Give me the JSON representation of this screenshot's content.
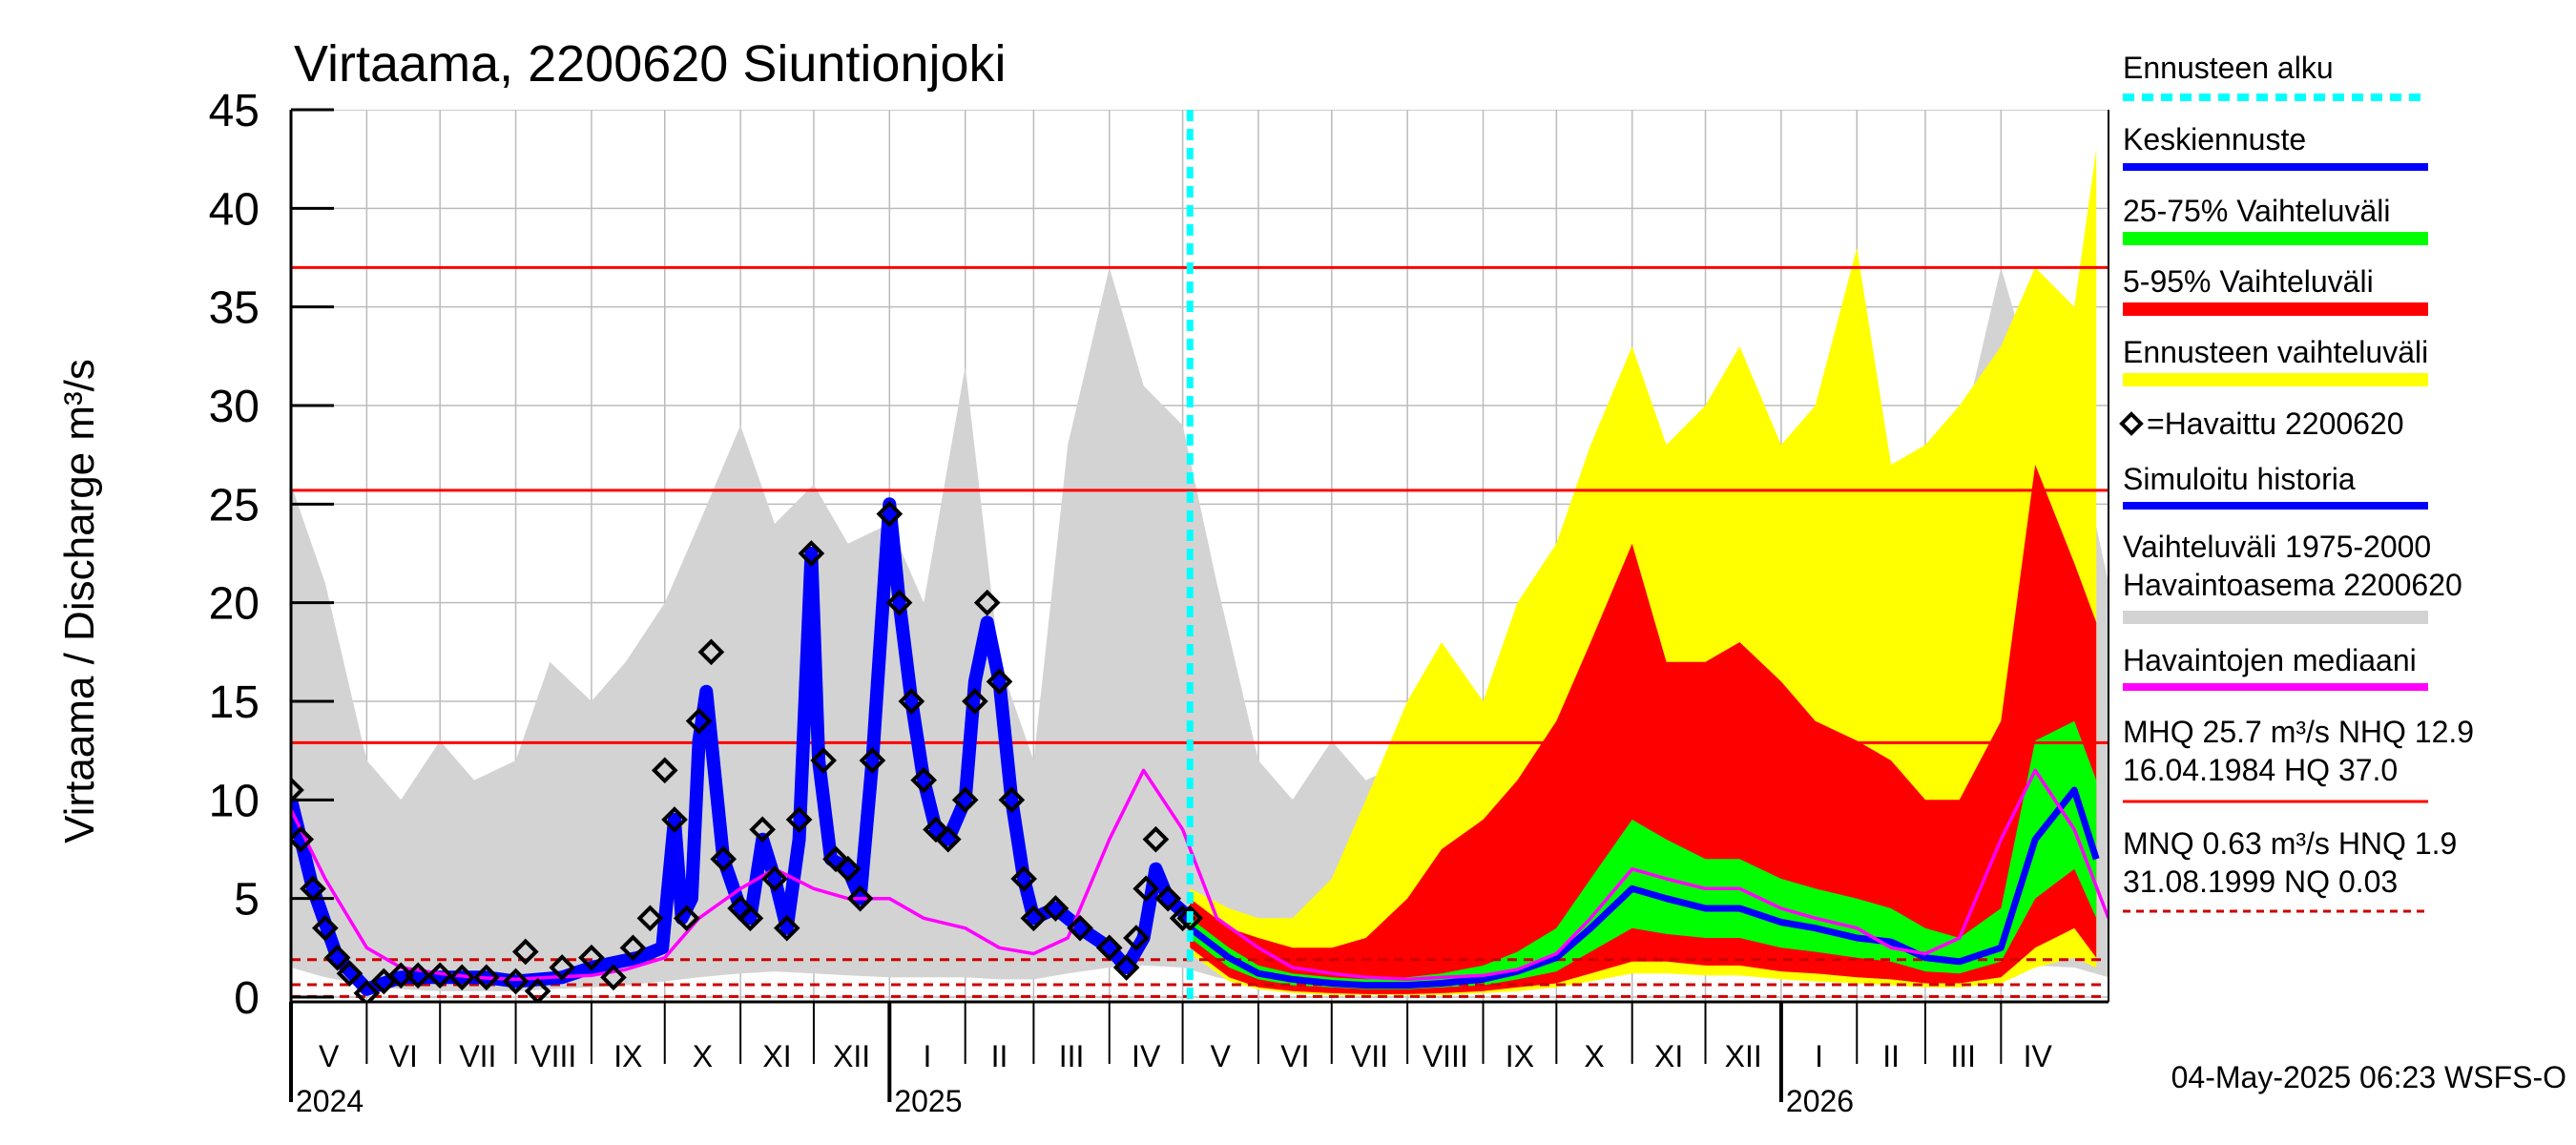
{
  "chart_data": {
    "type": "area",
    "title": "Virtaama, 2200620 Siuntionjoki",
    "ylabel": "Virtaama / Discharge    m³/s",
    "ylim": [
      0,
      45
    ],
    "yticks": [
      0,
      5,
      10,
      15,
      20,
      25,
      30,
      35,
      40,
      45
    ],
    "xlim": [
      "2024-05-01",
      "2026-05-15"
    ],
    "x_months": [
      {
        "label": "V",
        "start": "2024-05-01"
      },
      {
        "label": "VI",
        "start": "2024-06-01"
      },
      {
        "label": "VII",
        "start": "2024-07-01"
      },
      {
        "label": "VIII",
        "start": "2024-08-01"
      },
      {
        "label": "IX",
        "start": "2024-09-01"
      },
      {
        "label": "X",
        "start": "2024-10-01"
      },
      {
        "label": "XI",
        "start": "2024-11-01"
      },
      {
        "label": "XII",
        "start": "2024-12-01"
      },
      {
        "label": "I",
        "start": "2025-01-01"
      },
      {
        "label": "II",
        "start": "2025-02-01"
      },
      {
        "label": "III",
        "start": "2025-03-01"
      },
      {
        "label": "IV",
        "start": "2025-04-01"
      },
      {
        "label": "V",
        "start": "2025-05-01"
      },
      {
        "label": "VI",
        "start": "2025-06-01"
      },
      {
        "label": "VII",
        "start": "2025-07-01"
      },
      {
        "label": "VIII",
        "start": "2025-08-01"
      },
      {
        "label": "IX",
        "start": "2025-09-01"
      },
      {
        "label": "X",
        "start": "2025-10-01"
      },
      {
        "label": "XI",
        "start": "2025-11-01"
      },
      {
        "label": "XII",
        "start": "2025-12-01"
      },
      {
        "label": "I",
        "start": "2026-01-01"
      },
      {
        "label": "II",
        "start": "2026-02-01"
      },
      {
        "label": "III",
        "start": "2026-03-01"
      },
      {
        "label": "IV",
        "start": "2026-04-01"
      }
    ],
    "x_years": [
      {
        "label": "2024",
        "date": "2024-05-01"
      },
      {
        "label": "2025",
        "date": "2025-01-01"
      },
      {
        "label": "2026",
        "date": "2026-01-01"
      }
    ],
    "forecast_start": "2025-05-04",
    "reference_lines": [
      {
        "name": "HQ",
        "value": 37.0,
        "style": "solid",
        "color": "#ff0000"
      },
      {
        "name": "MHQ",
        "value": 25.7,
        "style": "solid",
        "color": "#ff0000"
      },
      {
        "name": "NHQ",
        "value": 12.9,
        "style": "solid",
        "color": "#ff0000"
      },
      {
        "name": "HNQ",
        "value": 1.9,
        "style": "dashed",
        "color": "#cc0000"
      },
      {
        "name": "MNQ",
        "value": 0.63,
        "style": "dashed",
        "color": "#cc0000"
      },
      {
        "name": "NQ",
        "value": 0.03,
        "style": "dashed",
        "color": "#cc0000"
      }
    ],
    "historical_range": {
      "x": [
        "2024-05-01",
        "2024-05-15",
        "2024-06-01",
        "2024-06-15",
        "2024-07-01",
        "2024-07-15",
        "2024-08-01",
        "2024-08-15",
        "2024-09-01",
        "2024-09-15",
        "2024-10-01",
        "2024-10-15",
        "2024-11-01",
        "2024-11-15",
        "2024-12-01",
        "2024-12-15",
        "2025-01-01",
        "2025-01-15",
        "2025-02-01",
        "2025-02-15",
        "2025-03-01",
        "2025-03-15",
        "2025-04-01",
        "2025-04-15",
        "2025-05-01",
        "2025-05-15",
        "2025-06-01",
        "2025-06-15",
        "2025-07-01",
        "2025-07-15",
        "2025-08-01",
        "2025-08-15",
        "2025-09-01",
        "2025-09-15",
        "2025-10-01",
        "2025-10-15",
        "2025-11-01",
        "2025-11-15",
        "2025-12-01",
        "2025-12-15",
        "2026-01-01",
        "2026-01-15",
        "2026-02-01",
        "2026-02-15",
        "2026-03-01",
        "2026-03-15",
        "2026-04-01",
        "2026-04-15",
        "2026-05-01",
        "2026-05-15"
      ],
      "low": [
        1.5,
        1.0,
        0.6,
        0.4,
        0.3,
        0.3,
        0.3,
        0.4,
        0.5,
        0.6,
        0.8,
        1.0,
        1.2,
        1.3,
        1.2,
        1.1,
        1.0,
        1.0,
        1.0,
        0.9,
        0.9,
        1.2,
        1.5,
        1.6,
        1.5,
        1.0,
        0.6,
        0.4,
        0.3,
        0.3,
        0.3,
        0.4,
        0.5,
        0.6,
        0.8,
        1.0,
        1.2,
        1.3,
        1.2,
        1.1,
        1.0,
        1.0,
        1.0,
        0.9,
        0.9,
        1.2,
        1.5,
        1.6,
        1.5,
        1.0
      ],
      "high": [
        26,
        21,
        12,
        10,
        13,
        11,
        12,
        17,
        15,
        17,
        20,
        24,
        29,
        24,
        26,
        23,
        24,
        20,
        32,
        17,
        12,
        28,
        37,
        31,
        29,
        21,
        12,
        10,
        13,
        11,
        12,
        17,
        15,
        17,
        20,
        24,
        29,
        24,
        26,
        23,
        24,
        20,
        32,
        17,
        12,
        28,
        37,
        31,
        29,
        21
      ]
    },
    "observation_median": {
      "x": [
        "2024-05-01",
        "2024-05-15",
        "2024-06-01",
        "2024-06-15",
        "2024-07-01",
        "2024-07-15",
        "2024-08-01",
        "2024-08-15",
        "2024-09-01",
        "2024-09-15",
        "2024-10-01",
        "2024-10-15",
        "2024-11-01",
        "2024-11-15",
        "2024-12-01",
        "2024-12-15",
        "2025-01-01",
        "2025-01-15",
        "2025-02-01",
        "2025-02-15",
        "2025-03-01",
        "2025-03-15",
        "2025-04-01",
        "2025-04-15",
        "2025-05-01",
        "2025-05-15",
        "2025-06-01",
        "2025-06-15",
        "2025-07-01",
        "2025-07-15",
        "2025-08-01",
        "2025-08-15",
        "2025-09-01",
        "2025-09-15",
        "2025-10-01",
        "2025-10-15",
        "2025-11-01",
        "2025-11-15",
        "2025-12-01",
        "2025-12-15",
        "2026-01-01",
        "2026-01-15",
        "2026-02-01",
        "2026-02-15",
        "2026-03-01",
        "2026-03-15",
        "2026-04-01",
        "2026-04-15",
        "2026-05-01",
        "2026-05-15"
      ],
      "y": [
        9.5,
        6.0,
        2.5,
        1.5,
        1.2,
        1.0,
        0.9,
        1.0,
        1.1,
        1.4,
        2.0,
        4.0,
        5.5,
        6.5,
        5.5,
        5.0,
        5.0,
        4.0,
        3.5,
        2.5,
        2.2,
        3.0,
        8.0,
        11.5,
        8.5,
        4.0,
        2.5,
        1.5,
        1.2,
        1.0,
        0.9,
        1.0,
        1.1,
        1.4,
        2.2,
        4.0,
        6.5,
        6.0,
        5.5,
        5.5,
        4.5,
        4.0,
        3.5,
        2.5,
        2.2,
        3.0,
        8.0,
        11.5,
        8.5,
        4.0
      ]
    },
    "observed": {
      "name": "=Havaittu 2200620",
      "x": [
        "2024-05-01",
        "2024-05-05",
        "2024-05-10",
        "2024-05-15",
        "2024-05-20",
        "2024-05-25",
        "2024-06-01",
        "2024-06-08",
        "2024-06-15",
        "2024-06-22",
        "2024-07-01",
        "2024-07-10",
        "2024-07-20",
        "2024-08-01",
        "2024-08-05",
        "2024-08-10",
        "2024-08-20",
        "2024-09-01",
        "2024-09-10",
        "2024-09-18",
        "2024-09-25",
        "2024-10-01",
        "2024-10-05",
        "2024-10-10",
        "2024-10-15",
        "2024-10-20",
        "2024-10-25",
        "2024-11-01",
        "2024-11-05",
        "2024-11-10",
        "2024-11-15",
        "2024-11-20",
        "2024-11-25",
        "2024-11-30",
        "2024-12-05",
        "2024-12-10",
        "2024-12-15",
        "2024-12-20",
        "2024-12-25",
        "2025-01-01",
        "2025-01-05",
        "2025-01-10",
        "2025-01-15",
        "2025-01-20",
        "2025-01-25",
        "2025-02-01",
        "2025-02-05",
        "2025-02-10",
        "2025-02-15",
        "2025-02-20",
        "2025-02-25",
        "2025-03-01",
        "2025-03-10",
        "2025-03-20",
        "2025-04-01",
        "2025-04-08",
        "2025-04-12",
        "2025-04-16",
        "2025-04-20",
        "2025-04-25",
        "2025-05-01",
        "2025-05-04"
      ],
      "y": [
        10.5,
        8.0,
        5.5,
        3.5,
        2.0,
        1.2,
        0.2,
        0.8,
        1.1,
        1.1,
        1.1,
        1.0,
        1.0,
        0.8,
        2.3,
        0.3,
        1.5,
        2.0,
        1.0,
        2.5,
        4.0,
        11.5,
        9.0,
        4.0,
        14.0,
        17.5,
        7.0,
        4.5,
        4.0,
        8.5,
        6.0,
        3.5,
        9.0,
        22.5,
        12.0,
        7.0,
        6.5,
        5.0,
        12.0,
        24.5,
        20.0,
        15.0,
        11.0,
        8.5,
        8.0,
        10.0,
        15.0,
        20.0,
        16.0,
        10.0,
        6.0,
        4.0,
        4.5,
        3.5,
        2.5,
        1.5,
        3.0,
        5.5,
        8.0,
        5.0,
        4.0,
        4.0
      ]
    },
    "simulated_history": {
      "name": "Simuloitu historia",
      "x": [
        "2024-05-01",
        "2024-05-10",
        "2024-05-20",
        "2024-06-01",
        "2024-06-15",
        "2024-07-01",
        "2024-07-20",
        "2024-08-01",
        "2024-08-20",
        "2024-09-01",
        "2024-09-20",
        "2024-09-30",
        "2024-10-05",
        "2024-10-08",
        "2024-10-12",
        "2024-10-15",
        "2024-10-18",
        "2024-10-25",
        "2024-11-01",
        "2024-11-05",
        "2024-11-10",
        "2024-11-15",
        "2024-11-20",
        "2024-11-25",
        "2024-11-30",
        "2024-12-03",
        "2024-12-08",
        "2024-12-15",
        "2024-12-20",
        "2024-12-25",
        "2025-01-01",
        "2025-01-05",
        "2025-01-10",
        "2025-01-15",
        "2025-01-20",
        "2025-01-25",
        "2025-02-01",
        "2025-02-05",
        "2025-02-10",
        "2025-02-15",
        "2025-02-20",
        "2025-02-25",
        "2025-03-01",
        "2025-03-10",
        "2025-03-20",
        "2025-04-01",
        "2025-04-08",
        "2025-04-15",
        "2025-04-20",
        "2025-04-25",
        "2025-05-04"
      ],
      "y": [
        10.0,
        5.5,
        2.0,
        0.4,
        1.0,
        1.0,
        1.0,
        0.8,
        1.0,
        1.5,
        2.0,
        2.5,
        9.0,
        4.0,
        5.0,
        13.0,
        15.5,
        7.0,
        4.5,
        4.0,
        8.0,
        6.0,
        3.5,
        8.0,
        22.5,
        12.0,
        7.0,
        6.5,
        5.0,
        12.0,
        25.0,
        20.0,
        15.0,
        11.0,
        8.5,
        8.0,
        10.0,
        16.0,
        19.0,
        16.0,
        10.0,
        6.0,
        4.0,
        4.5,
        3.5,
        2.5,
        1.5,
        3.0,
        6.5,
        5.0,
        4.0
      ]
    },
    "forecast": {
      "x": [
        "2025-05-04",
        "2025-05-20",
        "2025-06-01",
        "2025-06-15",
        "2025-07-01",
        "2025-07-15",
        "2025-08-01",
        "2025-08-15",
        "2025-09-01",
        "2025-09-15",
        "2025-10-01",
        "2025-10-15",
        "2025-11-01",
        "2025-11-15",
        "2025-12-01",
        "2025-12-15",
        "2026-01-01",
        "2026-01-15",
        "2026-02-01",
        "2026-02-15",
        "2026-03-01",
        "2026-03-15",
        "2026-04-01",
        "2026-04-15",
        "2026-05-01",
        "2026-05-10"
      ],
      "mean": [
        3.5,
        2.0,
        1.2,
        0.9,
        0.7,
        0.6,
        0.6,
        0.7,
        0.9,
        1.3,
        2.0,
        3.5,
        5.5,
        5.0,
        4.5,
        4.5,
        3.8,
        3.5,
        3.0,
        2.8,
        2.0,
        1.8,
        2.5,
        8.0,
        10.5,
        7.0
      ],
      "p25": [
        3.0,
        1.5,
        0.9,
        0.6,
        0.5,
        0.4,
        0.4,
        0.5,
        0.6,
        0.9,
        1.3,
        2.3,
        3.5,
        3.2,
        3.0,
        3.0,
        2.5,
        2.3,
        2.0,
        1.8,
        1.3,
        1.2,
        1.8,
        5.0,
        6.5,
        4.0
      ],
      "p75": [
        4.0,
        2.5,
        1.6,
        1.2,
        1.0,
        0.9,
        1.0,
        1.2,
        1.6,
        2.3,
        3.5,
        6.0,
        9.0,
        8.0,
        7.0,
        7.0,
        6.0,
        5.5,
        5.0,
        4.5,
        3.5,
        3.0,
        4.5,
        13.0,
        14.0,
        11.0
      ],
      "p5": [
        2.5,
        1.0,
        0.5,
        0.3,
        0.2,
        0.15,
        0.15,
        0.2,
        0.3,
        0.5,
        0.7,
        1.2,
        1.8,
        1.8,
        1.6,
        1.6,
        1.3,
        1.2,
        1.0,
        0.9,
        0.7,
        0.7,
        1.0,
        2.5,
        3.5,
        2.0
      ],
      "p95": [
        5.0,
        3.5,
        3.0,
        2.5,
        2.5,
        3.0,
        5.0,
        7.5,
        9.0,
        11.0,
        14.0,
        18.0,
        23.0,
        17.0,
        17.0,
        18.0,
        16.0,
        14.0,
        13.0,
        12.0,
        10.0,
        10.0,
        14.0,
        27.0,
        22.0,
        19.0
      ],
      "min": [
        2.2,
        0.8,
        0.4,
        0.2,
        0.1,
        0.1,
        0.1,
        0.1,
        0.2,
        0.3,
        0.5,
        0.8,
        1.2,
        1.2,
        1.1,
        1.1,
        0.9,
        0.8,
        0.7,
        0.6,
        0.5,
        0.5,
        0.7,
        1.5,
        2.0,
        1.5
      ],
      "max": [
        5.5,
        4.5,
        4.0,
        4.0,
        6.0,
        10.0,
        15.0,
        18.0,
        15.0,
        20.0,
        23.0,
        28.0,
        33.0,
        28.0,
        30.0,
        33.0,
        28.0,
        30.0,
        38.0,
        27.0,
        28.0,
        30.0,
        33.0,
        37.0,
        35.0,
        43.0
      ]
    },
    "legend": [
      {
        "label": "Ennusteen alku",
        "color": "#00ffff",
        "style": "dashed"
      },
      {
        "label": "Keskiennuste",
        "color": "#0000ff",
        "style": "line"
      },
      {
        "label": "25-75% Vaihteluväli",
        "color": "#00ff00",
        "style": "band"
      },
      {
        "label": "5-95% Vaihteluväli",
        "color": "#ff0000",
        "style": "band"
      },
      {
        "label": "Ennusteen vaihteluväli",
        "color": "#ffff00",
        "style": "band"
      },
      {
        "label": "=Havaittu 2200620",
        "color": "#000000",
        "style": "marker"
      },
      {
        "label": "Simuloitu historia",
        "color": "#0000ff",
        "style": "line"
      },
      {
        "label": "Vaihteluväli 1975-2000",
        "label2": " Havaintoasema 2200620",
        "color": "#d3d3d3",
        "style": "band"
      },
      {
        "label": "Havaintojen mediaani",
        "color": "#ff00ff",
        "style": "line"
      },
      {
        "label": "MHQ 25.7 m³/s NHQ 12.9",
        "label2": "16.04.1984 HQ 37.0",
        "color": "#ff0000",
        "style": "line"
      },
      {
        "label": "MNQ 0.63 m³/s HNQ  1.9",
        "label2": "31.08.1999 NQ 0.03",
        "color": "#cc0000",
        "style": "dashed"
      }
    ],
    "footer": "04-May-2025 06:23 WSFS-O",
    "colors": {
      "historical_range": "#d3d3d3",
      "forecast_range": "#ffff00",
      "p5_95": "#ff0000",
      "p25_75": "#00ff00",
      "mean": "#0000ff",
      "median": "#ff00ff",
      "forecast_start": "#00ffff"
    }
  }
}
